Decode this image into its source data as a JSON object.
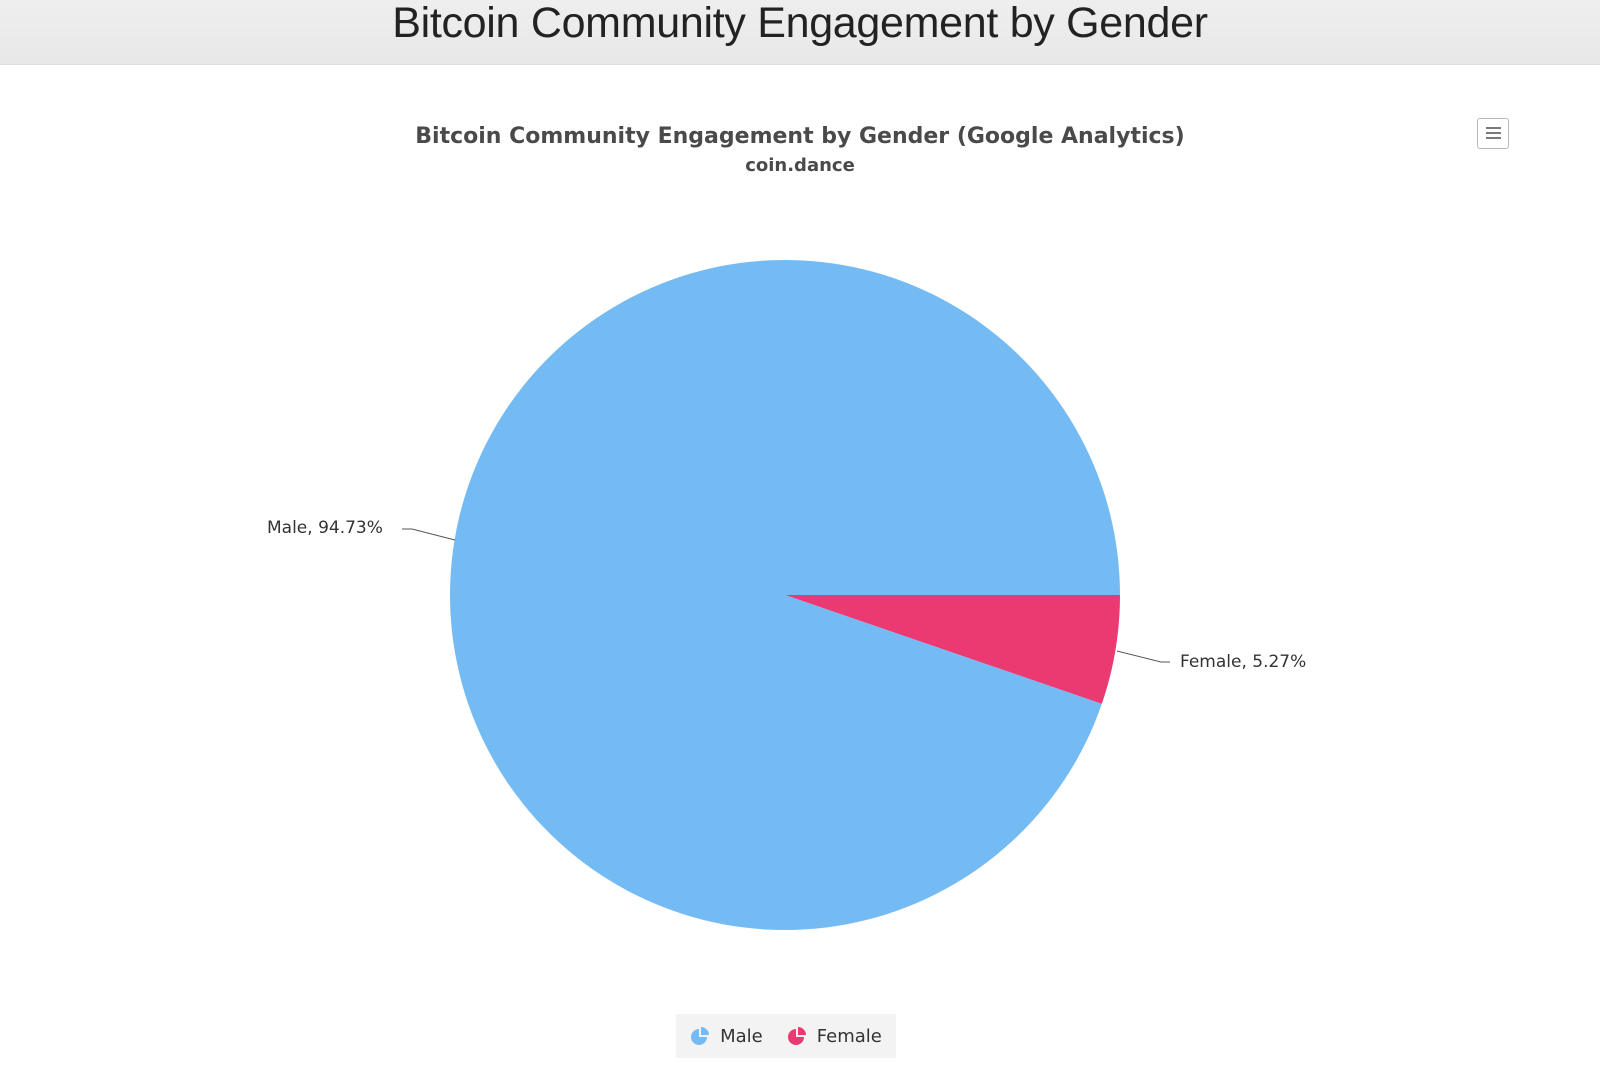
{
  "header": {
    "title": "Bitcoin Community Engagement by Gender"
  },
  "chart": {
    "title": "Bitcoin Community Engagement by Gender (Google Analytics)",
    "subtitle": "coin.dance",
    "menu_icon": "hamburger-menu-icon",
    "labels": {
      "male": "Male, 94.73%",
      "female": "Female, 5.27%"
    },
    "legend": [
      {
        "label": "Male",
        "color": "#74bbf4",
        "icon": "pie-slice-icon"
      },
      {
        "label": "Female",
        "color": "#eb3a72",
        "icon": "pie-slice-icon"
      }
    ]
  },
  "chart_data": {
    "type": "pie",
    "title": "Bitcoin Community Engagement by Gender (Google Analytics)",
    "subtitle": "coin.dance",
    "categories": [
      "Male",
      "Female"
    ],
    "values": [
      94.73,
      5.27
    ],
    "unit": "%",
    "colors": [
      "#74bbf4",
      "#eb3a72"
    ],
    "data_labels": [
      "Male, 94.73%",
      "Female, 5.27%"
    ],
    "legend_position": "bottom",
    "start_angle_deg": 0,
    "direction": "clockwise"
  }
}
